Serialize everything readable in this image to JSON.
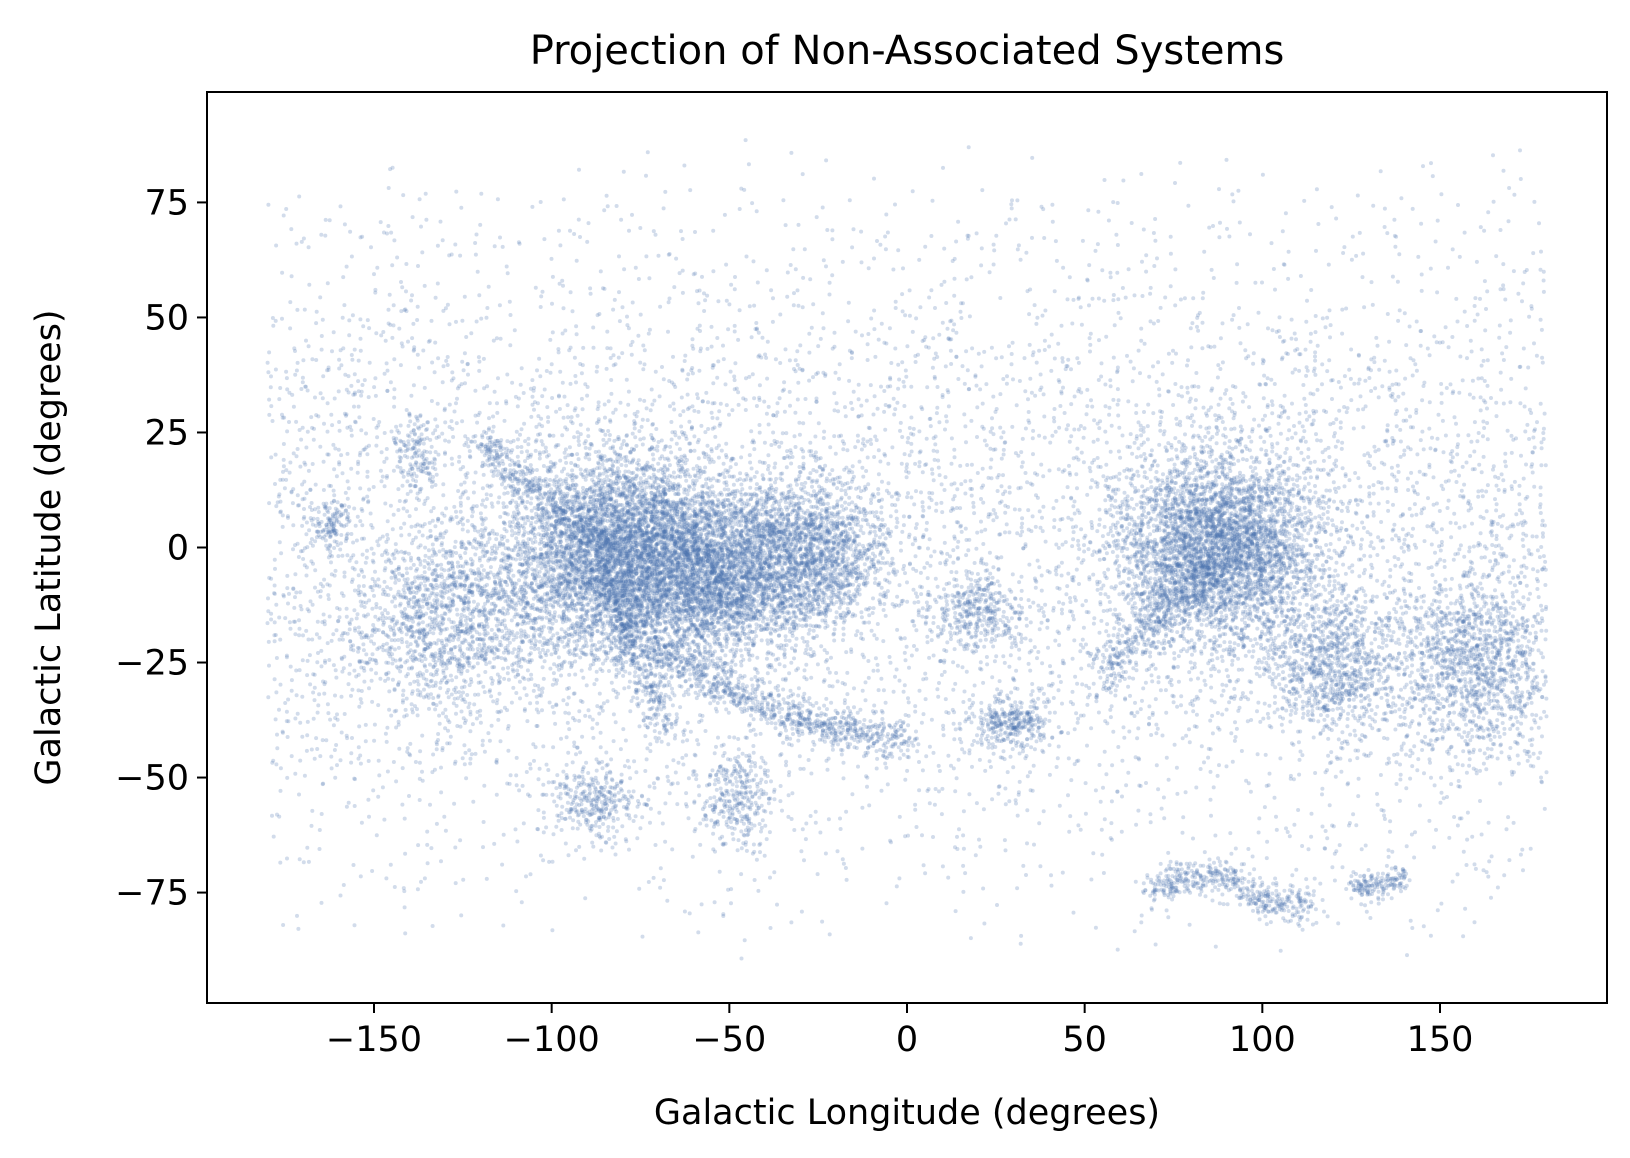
{
  "chart_data": {
    "type": "scatter",
    "title": "Projection of Non-Associated Systems",
    "xlabel": "Galactic Longitude (degrees)",
    "ylabel": "Galactic Latitude (degrees)",
    "xlim": [
      -197,
      197
    ],
    "ylim": [
      -99,
      99
    ],
    "xticks": [
      {
        "value": -150,
        "label": "−150"
      },
      {
        "value": -100,
        "label": "−100"
      },
      {
        "value": -50,
        "label": "−50"
      },
      {
        "value": 0,
        "label": "0"
      },
      {
        "value": 50,
        "label": "50"
      },
      {
        "value": 100,
        "label": "100"
      },
      {
        "value": 150,
        "label": "150"
      }
    ],
    "yticks": [
      {
        "value": -75,
        "label": "−75"
      },
      {
        "value": -50,
        "label": "−50"
      },
      {
        "value": -25,
        "label": "−25"
      },
      {
        "value": 0,
        "label": "0"
      },
      {
        "value": 25,
        "label": "25"
      },
      {
        "value": 50,
        "label": "50"
      },
      {
        "value": 75,
        "label": "75"
      }
    ],
    "grid": false,
    "legend": "none",
    "point_color": "#4c72b0",
    "point_opacity": 0.25,
    "x_range_of_points": [
      -180,
      180
    ],
    "y_range_of_points": [
      -90,
      90
    ],
    "density_features": [
      {
        "shape": "cluster",
        "x": -80,
        "y": -2,
        "sx": 16,
        "sy": 11,
        "weight": 16
      },
      {
        "shape": "cluster",
        "x": -50,
        "y": -5,
        "sx": 14,
        "sy": 9,
        "weight": 9
      },
      {
        "shape": "cluster",
        "x": 88,
        "y": 0,
        "sx": 14,
        "sy": 10,
        "weight": 12
      },
      {
        "shape": "cluster",
        "x": -25,
        "y": -1,
        "sx": 10,
        "sy": 8,
        "weight": 4
      },
      {
        "shape": "cluster",
        "x": -128,
        "y": -15,
        "sx": 14,
        "sy": 10,
        "weight": 4
      },
      {
        "shape": "cluster",
        "x": 160,
        "y": -25,
        "sx": 12,
        "sy": 10,
        "weight": 4
      },
      {
        "shape": "cluster",
        "x": 120,
        "y": -25,
        "sx": 10,
        "sy": 8,
        "weight": 3
      },
      {
        "shape": "cluster",
        "x": -88,
        "y": -55,
        "sx": 6,
        "sy": 4,
        "weight": 1
      },
      {
        "shape": "cluster",
        "x": -48,
        "y": -55,
        "sx": 6,
        "sy": 5,
        "weight": 1
      },
      {
        "shape": "cluster",
        "x": 20,
        "y": -14,
        "sx": 6,
        "sy": 4,
        "weight": 1
      },
      {
        "shape": "cluster",
        "x": 30,
        "y": -38,
        "sx": 6,
        "sy": 3,
        "weight": 1
      },
      {
        "shape": "cluster",
        "x": -162,
        "y": 5,
        "sx": 3,
        "sy": 3,
        "weight": 0.4
      },
      {
        "shape": "cluster",
        "x": -138,
        "y": 20,
        "sx": 3,
        "sy": 4,
        "weight": 0.4
      },
      {
        "shape": "stream",
        "path": [
          [
            -70,
            -22
          ],
          [
            -55,
            -29
          ],
          [
            -40,
            -35
          ],
          [
            -28,
            -38
          ],
          [
            -15,
            -40
          ],
          [
            0,
            -42
          ]
        ],
        "width": 2.2,
        "weight": 2.5
      },
      {
        "shape": "stream",
        "path": [
          [
            -120,
            24
          ],
          [
            -108,
            14
          ],
          [
            -95,
            6
          ],
          [
            -85,
            0
          ]
        ],
        "width": 2.2,
        "weight": 1.2
      },
      {
        "shape": "stream",
        "path": [
          [
            -85,
            -8
          ],
          [
            -78,
            -18
          ],
          [
            -72,
            -30
          ],
          [
            -68,
            -40
          ]
        ],
        "width": 2.5,
        "weight": 1.2
      },
      {
        "shape": "stream",
        "path": [
          [
            55,
            -28
          ],
          [
            65,
            -20
          ],
          [
            75,
            -12
          ],
          [
            85,
            -3
          ]
        ],
        "width": 3,
        "weight": 1.5
      },
      {
        "shape": "stream",
        "path": [
          [
            68,
            -74
          ],
          [
            80,
            -72
          ],
          [
            92,
            -72
          ],
          [
            100,
            -77
          ],
          [
            115,
            -78
          ]
        ],
        "width": 2,
        "weight": 1.5
      },
      {
        "shape": "stream",
        "path": [
          [
            125,
            -74
          ],
          [
            140,
            -72
          ]
        ],
        "width": 1.5,
        "weight": 0.5
      }
    ]
  }
}
